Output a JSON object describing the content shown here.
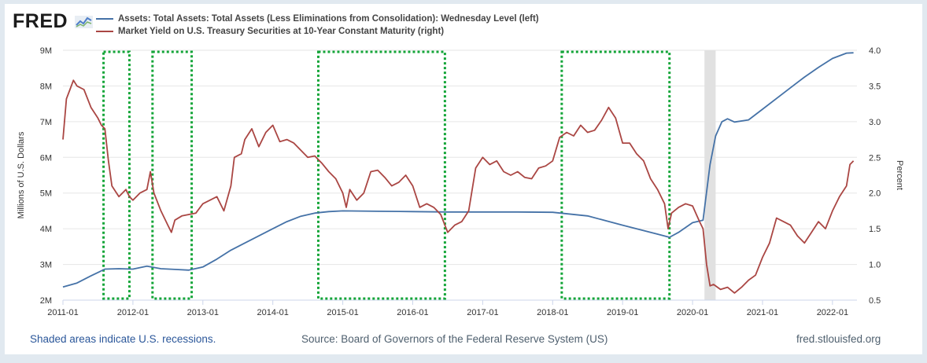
{
  "logo": "FRED",
  "legend": [
    {
      "label": "Assets: Total Assets: Total Assets (Less Eliminations from Consolidation): Wednesday Level (left)",
      "color": "#4572a7"
    },
    {
      "label": "Market Yield on U.S. Treasury Securities at 10-Year Constant Maturity (right)",
      "color": "#aa4643"
    }
  ],
  "footer": {
    "recessions": "Shaded areas indicate U.S. recessions.",
    "source": "Source: Board of Governors of the Federal Reserve System (US)",
    "site": "fred.stlouisfed.org"
  },
  "chart_data": {
    "type": "line",
    "xlabel": "",
    "ylabel_left": "Millions of U.S. Dollars",
    "ylabel_right": "Percent",
    "x_range": [
      2011.0,
      2022.35
    ],
    "x_ticks": [
      "2011-01",
      "2012-01",
      "2013-01",
      "2014-01",
      "2015-01",
      "2016-01",
      "2017-01",
      "2018-01",
      "2019-01",
      "2020-01",
      "2021-01",
      "2022-01"
    ],
    "ylim_left": [
      2000000,
      9000000
    ],
    "yticks_left": [
      "2M",
      "3M",
      "4M",
      "5M",
      "6M",
      "7M",
      "8M",
      "9M"
    ],
    "ylim_right": [
      0.5,
      4.0
    ],
    "yticks_right": [
      "0.5",
      "1.0",
      "1.5",
      "2.0",
      "2.5",
      "3.0",
      "3.5",
      "4.0"
    ],
    "grid": true,
    "recession_shading": [
      [
        2020.17,
        2020.33
      ]
    ],
    "annotation_boxes": [
      [
        2011.58,
        2011.95
      ],
      [
        2012.28,
        2012.84
      ],
      [
        2014.65,
        2016.46
      ],
      [
        2018.13,
        2019.67
      ]
    ],
    "series": [
      {
        "name": "Assets: Total Assets: Total Assets (Less Eliminations from Consolidation): Wednesday Level (left)",
        "axis": "left",
        "points": [
          [
            2011.0,
            2370000
          ],
          [
            2011.2,
            2480000
          ],
          [
            2011.4,
            2680000
          ],
          [
            2011.6,
            2870000
          ],
          [
            2011.8,
            2880000
          ],
          [
            2012.0,
            2870000
          ],
          [
            2012.2,
            2950000
          ],
          [
            2012.4,
            2880000
          ],
          [
            2012.6,
            2860000
          ],
          [
            2012.8,
            2840000
          ],
          [
            2013.0,
            2930000
          ],
          [
            2013.2,
            3150000
          ],
          [
            2013.4,
            3400000
          ],
          [
            2013.6,
            3600000
          ],
          [
            2013.8,
            3800000
          ],
          [
            2014.0,
            4000000
          ],
          [
            2014.2,
            4200000
          ],
          [
            2014.4,
            4350000
          ],
          [
            2014.6,
            4440000
          ],
          [
            2014.8,
            4480000
          ],
          [
            2015.0,
            4500000
          ],
          [
            2015.5,
            4490000
          ],
          [
            2016.0,
            4480000
          ],
          [
            2016.5,
            4470000
          ],
          [
            2017.0,
            4470000
          ],
          [
            2017.5,
            4470000
          ],
          [
            2018.0,
            4460000
          ],
          [
            2018.5,
            4360000
          ],
          [
            2019.0,
            4100000
          ],
          [
            2019.5,
            3850000
          ],
          [
            2019.67,
            3760000
          ],
          [
            2019.8,
            3900000
          ],
          [
            2020.0,
            4170000
          ],
          [
            2020.15,
            4240000
          ],
          [
            2020.25,
            5800000
          ],
          [
            2020.33,
            6600000
          ],
          [
            2020.42,
            7000000
          ],
          [
            2020.5,
            7080000
          ],
          [
            2020.6,
            6990000
          ],
          [
            2020.8,
            7050000
          ],
          [
            2021.0,
            7350000
          ],
          [
            2021.2,
            7650000
          ],
          [
            2021.4,
            7950000
          ],
          [
            2021.6,
            8250000
          ],
          [
            2021.8,
            8520000
          ],
          [
            2022.0,
            8770000
          ],
          [
            2022.2,
            8920000
          ],
          [
            2022.3,
            8930000
          ]
        ]
      },
      {
        "name": "Market Yield on U.S. Treasury Securities at 10-Year Constant Maturity (right)",
        "axis": "right",
        "points": [
          [
            2011.0,
            2.75
          ],
          [
            2011.05,
            3.32
          ],
          [
            2011.1,
            3.45
          ],
          [
            2011.15,
            3.58
          ],
          [
            2011.2,
            3.5
          ],
          [
            2011.3,
            3.45
          ],
          [
            2011.4,
            3.2
          ],
          [
            2011.5,
            3.05
          ],
          [
            2011.55,
            2.95
          ],
          [
            2011.6,
            2.9
          ],
          [
            2011.65,
            2.45
          ],
          [
            2011.7,
            2.1
          ],
          [
            2011.8,
            1.95
          ],
          [
            2011.9,
            2.05
          ],
          [
            2011.95,
            1.95
          ],
          [
            2012.0,
            1.9
          ],
          [
            2012.1,
            2.0
          ],
          [
            2012.2,
            2.05
          ],
          [
            2012.25,
            2.3
          ],
          [
            2012.3,
            2.0
          ],
          [
            2012.4,
            1.75
          ],
          [
            2012.5,
            1.55
          ],
          [
            2012.55,
            1.45
          ],
          [
            2012.6,
            1.62
          ],
          [
            2012.7,
            1.68
          ],
          [
            2012.8,
            1.7
          ],
          [
            2012.9,
            1.72
          ],
          [
            2013.0,
            1.85
          ],
          [
            2013.1,
            1.9
          ],
          [
            2013.2,
            1.95
          ],
          [
            2013.3,
            1.75
          ],
          [
            2013.4,
            2.1
          ],
          [
            2013.45,
            2.5
          ],
          [
            2013.55,
            2.55
          ],
          [
            2013.6,
            2.75
          ],
          [
            2013.7,
            2.9
          ],
          [
            2013.8,
            2.65
          ],
          [
            2013.9,
            2.85
          ],
          [
            2014.0,
            2.95
          ],
          [
            2014.1,
            2.72
          ],
          [
            2014.2,
            2.75
          ],
          [
            2014.3,
            2.7
          ],
          [
            2014.4,
            2.6
          ],
          [
            2014.5,
            2.5
          ],
          [
            2014.6,
            2.52
          ],
          [
            2014.7,
            2.42
          ],
          [
            2014.8,
            2.3
          ],
          [
            2014.9,
            2.2
          ],
          [
            2015.0,
            2.0
          ],
          [
            2015.05,
            1.8
          ],
          [
            2015.1,
            2.05
          ],
          [
            2015.2,
            1.9
          ],
          [
            2015.3,
            2.0
          ],
          [
            2015.4,
            2.3
          ],
          [
            2015.5,
            2.32
          ],
          [
            2015.6,
            2.22
          ],
          [
            2015.7,
            2.1
          ],
          [
            2015.8,
            2.15
          ],
          [
            2015.9,
            2.25
          ],
          [
            2016.0,
            2.1
          ],
          [
            2016.1,
            1.8
          ],
          [
            2016.2,
            1.85
          ],
          [
            2016.3,
            1.8
          ],
          [
            2016.4,
            1.7
          ],
          [
            2016.5,
            1.45
          ],
          [
            2016.6,
            1.55
          ],
          [
            2016.7,
            1.6
          ],
          [
            2016.8,
            1.75
          ],
          [
            2016.9,
            2.35
          ],
          [
            2017.0,
            2.5
          ],
          [
            2017.1,
            2.4
          ],
          [
            2017.2,
            2.45
          ],
          [
            2017.3,
            2.3
          ],
          [
            2017.4,
            2.25
          ],
          [
            2017.5,
            2.3
          ],
          [
            2017.6,
            2.22
          ],
          [
            2017.7,
            2.2
          ],
          [
            2017.8,
            2.35
          ],
          [
            2017.9,
            2.38
          ],
          [
            2018.0,
            2.45
          ],
          [
            2018.1,
            2.78
          ],
          [
            2018.2,
            2.85
          ],
          [
            2018.3,
            2.8
          ],
          [
            2018.4,
            2.95
          ],
          [
            2018.5,
            2.85
          ],
          [
            2018.6,
            2.88
          ],
          [
            2018.7,
            3.02
          ],
          [
            2018.8,
            3.2
          ],
          [
            2018.9,
            3.05
          ],
          [
            2019.0,
            2.7
          ],
          [
            2019.1,
            2.7
          ],
          [
            2019.2,
            2.55
          ],
          [
            2019.3,
            2.45
          ],
          [
            2019.4,
            2.2
          ],
          [
            2019.5,
            2.05
          ],
          [
            2019.6,
            1.85
          ],
          [
            2019.65,
            1.5
          ],
          [
            2019.7,
            1.72
          ],
          [
            2019.8,
            1.8
          ],
          [
            2019.9,
            1.85
          ],
          [
            2020.0,
            1.82
          ],
          [
            2020.1,
            1.6
          ],
          [
            2020.15,
            1.5
          ],
          [
            2020.2,
            1.0
          ],
          [
            2020.25,
            0.7
          ],
          [
            2020.3,
            0.72
          ],
          [
            2020.4,
            0.65
          ],
          [
            2020.5,
            0.68
          ],
          [
            2020.6,
            0.6
          ],
          [
            2020.7,
            0.68
          ],
          [
            2020.8,
            0.78
          ],
          [
            2020.9,
            0.85
          ],
          [
            2021.0,
            1.1
          ],
          [
            2021.1,
            1.3
          ],
          [
            2021.2,
            1.65
          ],
          [
            2021.3,
            1.6
          ],
          [
            2021.4,
            1.55
          ],
          [
            2021.5,
            1.4
          ],
          [
            2021.6,
            1.3
          ],
          [
            2021.7,
            1.45
          ],
          [
            2021.8,
            1.6
          ],
          [
            2021.9,
            1.5
          ],
          [
            2022.0,
            1.75
          ],
          [
            2022.1,
            1.95
          ],
          [
            2022.2,
            2.1
          ],
          [
            2022.25,
            2.4
          ],
          [
            2022.3,
            2.45
          ]
        ]
      }
    ]
  }
}
